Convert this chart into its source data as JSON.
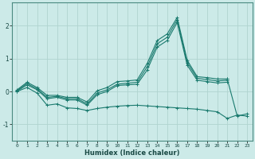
{
  "xlabel": "Humidex (Indice chaleur)",
  "xlim": [
    -0.5,
    23.5
  ],
  "ylim": [
    -1.5,
    2.7
  ],
  "bg_color": "#cceae8",
  "grid_color": "#b0d4d0",
  "line_color": "#1a7a6e",
  "series": {
    "line1": {
      "x": [
        0,
        1,
        2,
        3,
        4,
        5,
        6,
        7,
        8,
        9,
        10,
        11,
        12,
        13,
        14,
        15,
        16,
        17,
        18,
        19,
        20,
        21
      ],
      "y": [
        0.05,
        0.28,
        0.12,
        -0.12,
        -0.12,
        -0.18,
        -0.18,
        -0.32,
        0.02,
        0.12,
        0.3,
        0.32,
        0.35,
        0.85,
        1.55,
        1.75,
        2.25,
        0.95,
        0.45,
        0.42,
        0.38,
        0.38
      ]
    },
    "line2": {
      "x": [
        0,
        1,
        2,
        3,
        4,
        5,
        6,
        7,
        8,
        9,
        10,
        11,
        12,
        13,
        14,
        15,
        16,
        17,
        18,
        19,
        20,
        21
      ],
      "y": [
        0.03,
        0.24,
        0.08,
        -0.18,
        -0.15,
        -0.22,
        -0.22,
        -0.38,
        -0.05,
        0.05,
        0.22,
        0.25,
        0.28,
        0.75,
        1.45,
        1.65,
        2.18,
        0.88,
        0.4,
        0.36,
        0.32,
        0.34
      ]
    },
    "line3": {
      "x": [
        0,
        1,
        2,
        3,
        4,
        5,
        6,
        7,
        8,
        9,
        10,
        11,
        12,
        13,
        14,
        15,
        16,
        17,
        18,
        19,
        20,
        21
      ],
      "y": [
        0.01,
        0.2,
        0.05,
        -0.22,
        -0.18,
        -0.26,
        -0.26,
        -0.42,
        -0.1,
        0.0,
        0.18,
        0.2,
        0.22,
        0.65,
        1.35,
        1.55,
        2.1,
        0.8,
        0.34,
        0.3,
        0.26,
        0.28
      ]
    },
    "line4": {
      "x": [
        0,
        1,
        2,
        3,
        4,
        5,
        6,
        7,
        8,
        9,
        10,
        11,
        12,
        13,
        14,
        15,
        16,
        17,
        18,
        19,
        20,
        21,
        22,
        23
      ],
      "y": [
        0.0,
        0.12,
        -0.05,
        -0.42,
        -0.38,
        -0.5,
        -0.52,
        -0.58,
        -0.52,
        -0.48,
        -0.45,
        -0.43,
        -0.42,
        -0.44,
        -0.46,
        -0.48,
        -0.5,
        -0.52,
        -0.54,
        -0.58,
        -0.62,
        -0.82,
        -0.72,
        -0.75
      ]
    },
    "line5": {
      "x": [
        21,
        22,
        23
      ],
      "y": [
        0.38,
        -0.75,
        -0.68
      ]
    }
  }
}
